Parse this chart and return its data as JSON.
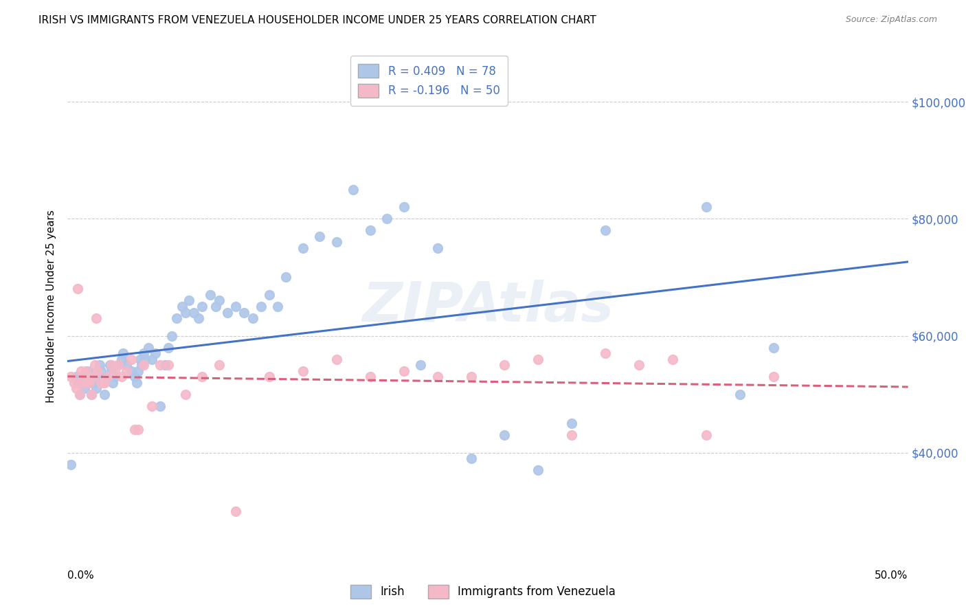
{
  "title": "IRISH VS IMMIGRANTS FROM VENEZUELA HOUSEHOLDER INCOME UNDER 25 YEARS CORRELATION CHART",
  "source": "Source: ZipAtlas.com",
  "ylabel": "Householder Income Under 25 years",
  "legend_label1": "R = 0.409   N = 78",
  "legend_label2": "R = -0.196   N = 50",
  "legend_bottom1": "Irish",
  "legend_bottom2": "Immigrants from Venezuela",
  "irish_color": "#aec6e8",
  "venezuela_color": "#f5b8c8",
  "irish_line_color": "#4472c4",
  "venezuela_line_color": "#d9607a",
  "ytick_labels": [
    "$40,000",
    "$60,000",
    "$80,000",
    "$100,000"
  ],
  "ytick_values": [
    40000,
    60000,
    80000,
    100000
  ],
  "ylim": [
    22000,
    108000
  ],
  "xlim": [
    0.0,
    0.5
  ],
  "watermark": "ZIPAtlas",
  "irish_x": [
    0.002,
    0.005,
    0.006,
    0.007,
    0.008,
    0.009,
    0.01,
    0.011,
    0.012,
    0.013,
    0.014,
    0.015,
    0.016,
    0.017,
    0.018,
    0.019,
    0.02,
    0.021,
    0.022,
    0.024,
    0.025,
    0.026,
    0.027,
    0.028,
    0.03,
    0.032,
    0.033,
    0.035,
    0.038,
    0.04,
    0.041,
    0.042,
    0.043,
    0.044,
    0.045,
    0.046,
    0.048,
    0.05,
    0.052,
    0.055,
    0.058,
    0.06,
    0.062,
    0.065,
    0.068,
    0.07,
    0.072,
    0.075,
    0.078,
    0.08,
    0.085,
    0.088,
    0.09,
    0.095,
    0.1,
    0.105,
    0.11,
    0.115,
    0.12,
    0.125,
    0.13,
    0.14,
    0.15,
    0.16,
    0.17,
    0.18,
    0.19,
    0.2,
    0.21,
    0.22,
    0.24,
    0.26,
    0.28,
    0.3,
    0.32,
    0.38,
    0.4,
    0.42
  ],
  "irish_y": [
    38000,
    53000,
    52000,
    50000,
    53000,
    52000,
    51000,
    53000,
    54000,
    52000,
    50000,
    53000,
    52000,
    51000,
    53000,
    55000,
    54000,
    52000,
    50000,
    53000,
    55000,
    54000,
    52000,
    53000,
    55000,
    56000,
    57000,
    55000,
    54000,
    53000,
    52000,
    54000,
    56000,
    55000,
    57000,
    56000,
    58000,
    56000,
    57000,
    48000,
    55000,
    58000,
    60000,
    63000,
    65000,
    64000,
    66000,
    64000,
    63000,
    65000,
    67000,
    65000,
    66000,
    64000,
    65000,
    64000,
    63000,
    65000,
    67000,
    65000,
    70000,
    75000,
    77000,
    76000,
    85000,
    78000,
    80000,
    82000,
    55000,
    75000,
    39000,
    43000,
    37000,
    45000,
    78000,
    82000,
    50000,
    58000
  ],
  "venezuela_x": [
    0.002,
    0.004,
    0.005,
    0.006,
    0.007,
    0.008,
    0.009,
    0.01,
    0.011,
    0.012,
    0.013,
    0.014,
    0.015,
    0.016,
    0.017,
    0.018,
    0.02,
    0.022,
    0.024,
    0.026,
    0.028,
    0.03,
    0.032,
    0.035,
    0.038,
    0.04,
    0.042,
    0.045,
    0.05,
    0.055,
    0.06,
    0.07,
    0.08,
    0.09,
    0.1,
    0.12,
    0.14,
    0.16,
    0.18,
    0.2,
    0.22,
    0.24,
    0.26,
    0.28,
    0.3,
    0.32,
    0.34,
    0.36,
    0.38,
    0.42
  ],
  "venezuela_y": [
    53000,
    52000,
    51000,
    68000,
    50000,
    54000,
    53000,
    52000,
    54000,
    53000,
    52000,
    50000,
    53000,
    55000,
    63000,
    54000,
    52000,
    52000,
    53000,
    55000,
    54000,
    55000,
    53000,
    54000,
    56000,
    44000,
    44000,
    55000,
    48000,
    55000,
    55000,
    50000,
    53000,
    55000,
    30000,
    53000,
    54000,
    56000,
    53000,
    54000,
    53000,
    53000,
    55000,
    56000,
    43000,
    57000,
    55000,
    56000,
    43000,
    53000
  ]
}
